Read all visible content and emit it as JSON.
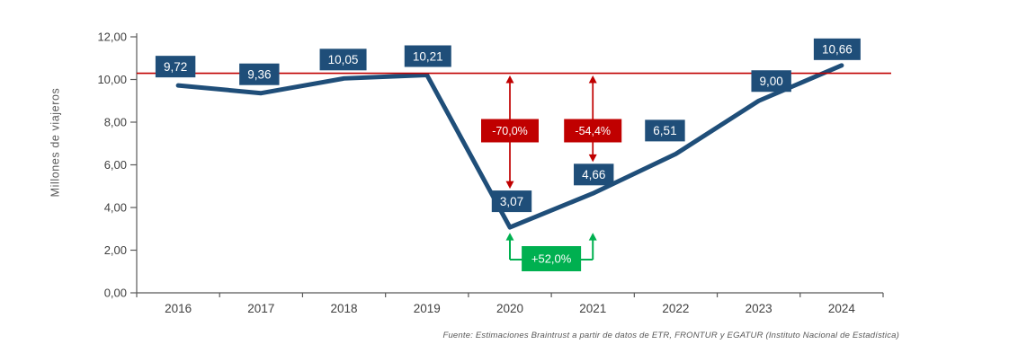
{
  "chart_data": {
    "type": "line",
    "ylabel": "Millones de viajeros",
    "categories": [
      "2016",
      "2017",
      "2018",
      "2019",
      "2020",
      "2021",
      "2022",
      "2023",
      "2024"
    ],
    "series": [
      {
        "name": "Millones de viajeros",
        "values": [
          9.72,
          9.36,
          10.05,
          10.21,
          3.07,
          4.66,
          6.51,
          9.0,
          10.66
        ],
        "value_labels": [
          "9,72",
          "9,36",
          "10,05",
          "10,21",
          "3,07",
          "4,66",
          "6,51",
          "9,00",
          "10,66"
        ],
        "color": "#1f4e79"
      }
    ],
    "ylim": [
      0,
      12
    ],
    "y_ticks": [
      {
        "value": 0,
        "label": "0,00"
      },
      {
        "value": 2,
        "label": "2,00"
      },
      {
        "value": 4,
        "label": "4,00"
      },
      {
        "value": 6,
        "label": "6,00"
      },
      {
        "value": 8,
        "label": "8,00"
      },
      {
        "value": 10,
        "label": "10,00"
      },
      {
        "value": 12,
        "label": "12,00"
      }
    ],
    "grid": false,
    "legend": false,
    "reference_line": {
      "level": 10.21,
      "color": "#c00000"
    },
    "annotations": [
      {
        "id": "drop-2020",
        "type": "drop-arrow",
        "category": "2020",
        "label": "-70,0%",
        "color": "#c00000"
      },
      {
        "id": "drop-2021",
        "type": "drop-arrow",
        "category": "2021",
        "label": "-54,4%",
        "color": "#c00000"
      },
      {
        "id": "recovery-2020-2021",
        "type": "bracket-up",
        "from_category": "2020",
        "to_category": "2021",
        "label": "+52,0%",
        "color": "#00b050"
      }
    ]
  },
  "source_note": "Fuente: Estimaciones Braintrust a partir de datos de ETR, FRONTUR y EGATUR (Instituto Nacional de Estadística)",
  "colors": {
    "series": "#1f4e79",
    "negative": "#c00000",
    "positive": "#00b050",
    "reference_line": "#c00000",
    "axis": "#595959",
    "tick_text": "#404040",
    "label_text": "#ffffff",
    "background": "#ffffff"
  }
}
